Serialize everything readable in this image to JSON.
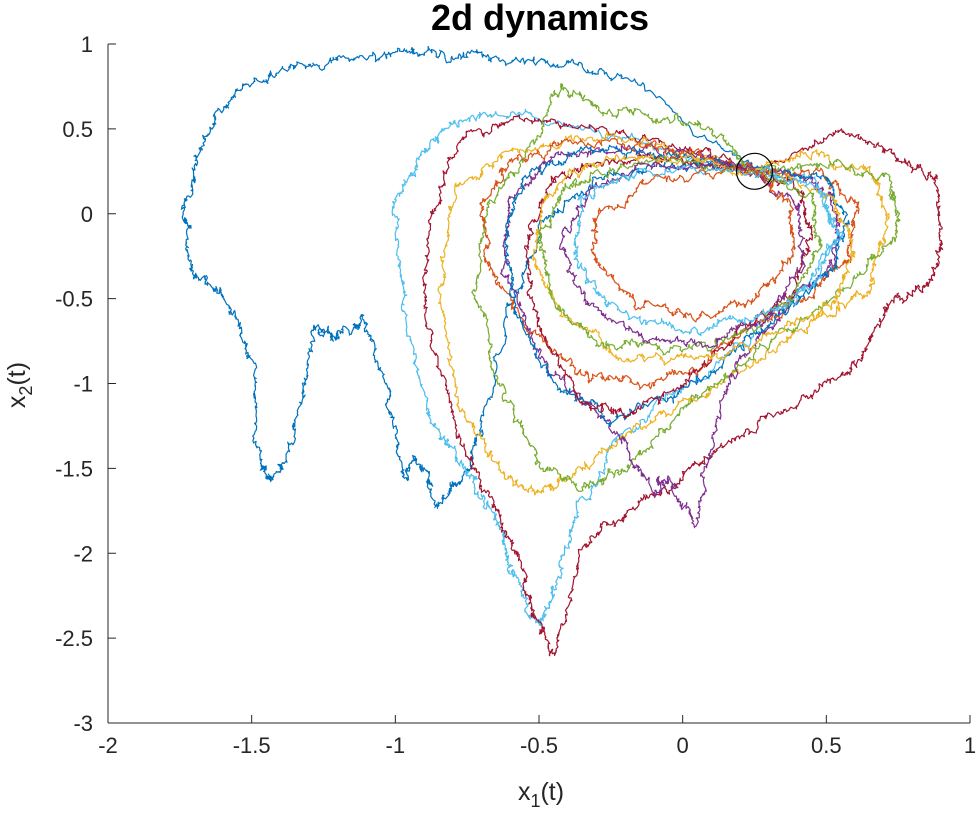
{
  "chart_data": {
    "type": "line",
    "title": "2d dynamics",
    "xlabel": {
      "base": "x",
      "sub": "1",
      "suffix": "(t)"
    },
    "ylabel": {
      "base": "x",
      "sub": "2",
      "suffix": "(t)"
    },
    "xlim": [
      -2,
      1
    ],
    "ylim": [
      -3,
      1
    ],
    "xticks": [
      -2,
      -1.5,
      -1,
      -0.5,
      0,
      0.5,
      1
    ],
    "xtick_labels": [
      "-2",
      "-1.5",
      "-1",
      "-0.5",
      "0",
      "0.5",
      "1"
    ],
    "yticks": [
      -3,
      -2.5,
      -2,
      -1.5,
      -1,
      -0.5,
      0,
      0.5,
      1
    ],
    "ytick_labels": [
      "-3",
      "-2.5",
      "-2",
      "-1.5",
      "-1",
      "-0.5",
      "0",
      "0.5",
      "1"
    ],
    "grid": false,
    "legend": "none",
    "colors": [
      "#0072BD",
      "#D95319",
      "#EDB120",
      "#7E2F8E",
      "#77AC30",
      "#4DBEEE",
      "#A2142F"
    ],
    "marker": {
      "shape": "circle",
      "x": 0.25,
      "y": 0.25,
      "color": "#000000"
    },
    "series": [
      {
        "color": "#0072BD",
        "keypoints": [
          [
            0.25,
            0.25
          ],
          [
            -0.2,
            0.8
          ],
          [
            -0.45,
            0.88
          ],
          [
            -0.7,
            0.94
          ],
          [
            -0.9,
            0.95
          ],
          [
            -1.1,
            0.93
          ],
          [
            -1.35,
            0.88
          ],
          [
            -1.55,
            0.72
          ],
          [
            -1.67,
            0.45
          ],
          [
            -1.73,
            0.05
          ],
          [
            -1.72,
            -0.35
          ],
          [
            -1.6,
            -0.45
          ],
          [
            -1.5,
            -0.85
          ],
          [
            -1.47,
            -1.5
          ],
          [
            -1.42,
            -1.58
          ],
          [
            -1.33,
            -1.2
          ],
          [
            -1.28,
            -0.65
          ],
          [
            -1.2,
            -0.75
          ],
          [
            -1.12,
            -0.6
          ],
          [
            -1.03,
            -1.05
          ],
          [
            -0.98,
            -1.55
          ],
          [
            -0.92,
            -1.45
          ],
          [
            -0.85,
            -1.7
          ],
          [
            -0.75,
            -1.55
          ],
          [
            -0.7,
            -1.25
          ],
          [
            -0.6,
            -0.55
          ],
          [
            -0.5,
            -0.1
          ],
          [
            -0.3,
            0.2
          ],
          [
            -0.05,
            0.3
          ],
          [
            0.25,
            0.25
          ]
        ]
      },
      {
        "color": "#4DBEEE",
        "keypoints": [
          [
            0.25,
            0.25
          ],
          [
            -0.2,
            0.45
          ],
          [
            -0.55,
            0.6
          ],
          [
            -0.78,
            0.55
          ],
          [
            -0.92,
            0.35
          ],
          [
            -1.0,
            0.0
          ],
          [
            -0.97,
            -0.6
          ],
          [
            -0.88,
            -1.2
          ],
          [
            -0.78,
            -1.45
          ],
          [
            -0.7,
            -1.65
          ],
          [
            -0.62,
            -1.9
          ],
          [
            -0.58,
            -2.15
          ],
          [
            -0.5,
            -2.45
          ],
          [
            -0.45,
            -2.2
          ],
          [
            -0.35,
            -1.7
          ],
          [
            -0.2,
            -1.3
          ],
          [
            0.1,
            -0.9
          ],
          [
            0.4,
            -0.5
          ],
          [
            0.55,
            -0.1
          ],
          [
            0.45,
            0.2
          ],
          [
            0.25,
            0.25
          ]
        ]
      },
      {
        "color": "#A2142F",
        "keypoints": [
          [
            0.25,
            0.25
          ],
          [
            0.55,
            0.5
          ],
          [
            0.75,
            0.35
          ],
          [
            0.88,
            0.2
          ],
          [
            0.9,
            -0.2
          ],
          [
            0.85,
            -0.45
          ],
          [
            0.7,
            -0.55
          ],
          [
            0.62,
            -0.85
          ],
          [
            0.45,
            -1.1
          ],
          [
            0.2,
            -1.3
          ],
          [
            0.0,
            -1.55
          ],
          [
            -0.2,
            -1.75
          ],
          [
            -0.35,
            -2.0
          ],
          [
            -0.45,
            -2.6
          ],
          [
            -0.52,
            -2.35
          ],
          [
            -0.58,
            -2.0
          ],
          [
            -0.68,
            -1.65
          ],
          [
            -0.8,
            -1.2
          ],
          [
            -0.9,
            -0.6
          ],
          [
            -0.88,
            0.0
          ],
          [
            -0.78,
            0.4
          ],
          [
            -0.6,
            0.55
          ],
          [
            -0.3,
            0.5
          ],
          [
            0.0,
            0.42
          ],
          [
            0.25,
            0.25
          ]
        ]
      },
      {
        "color": "#EDB120",
        "keypoints": [
          [
            0.25,
            0.25
          ],
          [
            0.45,
            0.35
          ],
          [
            0.65,
            0.25
          ],
          [
            0.72,
            0.0
          ],
          [
            0.65,
            -0.45
          ],
          [
            0.5,
            -0.6
          ],
          [
            0.3,
            -0.8
          ],
          [
            0.1,
            -1.05
          ],
          [
            -0.15,
            -1.25
          ],
          [
            -0.35,
            -1.5
          ],
          [
            -0.5,
            -1.65
          ],
          [
            -0.65,
            -1.5
          ],
          [
            -0.78,
            -1.1
          ],
          [
            -0.85,
            -0.5
          ],
          [
            -0.8,
            0.1
          ],
          [
            -0.62,
            0.35
          ],
          [
            -0.35,
            0.45
          ],
          [
            -0.05,
            0.4
          ],
          [
            0.25,
            0.25
          ]
        ]
      },
      {
        "color": "#77AC30",
        "keypoints": [
          [
            0.25,
            0.25
          ],
          [
            0.5,
            0.3
          ],
          [
            0.72,
            0.2
          ],
          [
            0.75,
            -0.05
          ],
          [
            0.65,
            -0.3
          ],
          [
            0.45,
            -0.6
          ],
          [
            0.2,
            -0.9
          ],
          [
            0.0,
            -1.15
          ],
          [
            -0.2,
            -1.5
          ],
          [
            -0.35,
            -1.65
          ],
          [
            -0.5,
            -1.45
          ],
          [
            -0.62,
            -1.05
          ],
          [
            -0.72,
            -0.5
          ],
          [
            -0.68,
            0.05
          ],
          [
            -0.55,
            0.35
          ],
          [
            -0.42,
            0.75
          ],
          [
            -0.3,
            0.62
          ],
          [
            -0.1,
            0.58
          ],
          [
            0.1,
            0.5
          ],
          [
            0.25,
            0.25
          ]
        ]
      },
      {
        "color": "#7E2F8E",
        "keypoints": [
          [
            0.25,
            0.25
          ],
          [
            0.45,
            0.2
          ],
          [
            0.55,
            0.0
          ],
          [
            0.5,
            -0.35
          ],
          [
            0.35,
            -0.55
          ],
          [
            0.2,
            -0.85
          ],
          [
            0.1,
            -1.3
          ],
          [
            0.05,
            -1.85
          ],
          [
            -0.05,
            -1.55
          ],
          [
            -0.1,
            -1.65
          ],
          [
            -0.2,
            -1.35
          ],
          [
            -0.35,
            -1.1
          ],
          [
            -0.5,
            -0.8
          ],
          [
            -0.62,
            -0.35
          ],
          [
            -0.6,
            0.1
          ],
          [
            -0.45,
            0.35
          ],
          [
            -0.2,
            0.4
          ],
          [
            0.05,
            0.35
          ],
          [
            0.25,
            0.25
          ]
        ]
      },
      {
        "color": "#D95319",
        "keypoints": [
          [
            0.25,
            0.25
          ],
          [
            0.48,
            0.22
          ],
          [
            0.6,
            0.05
          ],
          [
            0.58,
            -0.25
          ],
          [
            0.45,
            -0.5
          ],
          [
            0.25,
            -0.65
          ],
          [
            0.05,
            -0.9
          ],
          [
            -0.15,
            -1.0
          ],
          [
            -0.35,
            -0.95
          ],
          [
            -0.55,
            -0.65
          ],
          [
            -0.68,
            -0.3
          ],
          [
            -0.7,
            0.05
          ],
          [
            -0.6,
            0.3
          ],
          [
            -0.4,
            0.42
          ],
          [
            -0.1,
            0.4
          ],
          [
            0.1,
            0.33
          ],
          [
            0.25,
            0.25
          ]
        ]
      },
      {
        "color": "#0072BD",
        "keypoints": [
          [
            0.25,
            0.25
          ],
          [
            0.5,
            0.2
          ],
          [
            0.58,
            -0.05
          ],
          [
            0.5,
            -0.35
          ],
          [
            0.35,
            -0.6
          ],
          [
            0.15,
            -0.85
          ],
          [
            -0.05,
            -1.1
          ],
          [
            -0.25,
            -1.2
          ],
          [
            -0.45,
            -1.0
          ],
          [
            -0.58,
            -0.6
          ],
          [
            -0.62,
            -0.15
          ],
          [
            -0.55,
            0.2
          ],
          [
            -0.35,
            0.38
          ],
          [
            -0.1,
            0.36
          ],
          [
            0.25,
            0.25
          ]
        ]
      },
      {
        "color": "#A2142F",
        "keypoints": [
          [
            0.25,
            0.25
          ],
          [
            0.4,
            0.15
          ],
          [
            0.45,
            -0.1
          ],
          [
            0.38,
            -0.45
          ],
          [
            0.2,
            -0.7
          ],
          [
            0.0,
            -1.0
          ],
          [
            -0.2,
            -1.2
          ],
          [
            -0.35,
            -1.1
          ],
          [
            -0.5,
            -0.7
          ],
          [
            -0.55,
            -0.2
          ],
          [
            -0.48,
            0.15
          ],
          [
            -0.3,
            0.33
          ],
          [
            -0.05,
            0.32
          ],
          [
            0.25,
            0.25
          ]
        ]
      },
      {
        "color": "#EDB120",
        "keypoints": [
          [
            0.25,
            0.25
          ],
          [
            0.52,
            0.1
          ],
          [
            0.6,
            -0.2
          ],
          [
            0.52,
            -0.55
          ],
          [
            0.3,
            -0.75
          ],
          [
            0.05,
            -0.85
          ],
          [
            -0.2,
            -0.85
          ],
          [
            -0.42,
            -0.6
          ],
          [
            -0.52,
            -0.25
          ],
          [
            -0.48,
            0.12
          ],
          [
            -0.3,
            0.3
          ],
          [
            -0.05,
            0.34
          ],
          [
            0.25,
            0.25
          ]
        ]
      },
      {
        "color": "#77AC30",
        "keypoints": [
          [
            0.25,
            0.25
          ],
          [
            0.45,
            0.1
          ],
          [
            0.48,
            -0.2
          ],
          [
            0.38,
            -0.5
          ],
          [
            0.2,
            -0.7
          ],
          [
            -0.05,
            -0.8
          ],
          [
            -0.3,
            -0.75
          ],
          [
            -0.45,
            -0.5
          ],
          [
            -0.5,
            -0.15
          ],
          [
            -0.4,
            0.15
          ],
          [
            -0.2,
            0.3
          ],
          [
            0.25,
            0.25
          ]
        ]
      },
      {
        "color": "#7E2F8E",
        "keypoints": [
          [
            0.25,
            0.25
          ],
          [
            0.4,
            0.05
          ],
          [
            0.42,
            -0.3
          ],
          [
            0.3,
            -0.6
          ],
          [
            0.1,
            -0.75
          ],
          [
            -0.15,
            -0.72
          ],
          [
            -0.35,
            -0.5
          ],
          [
            -0.42,
            -0.15
          ],
          [
            -0.32,
            0.15
          ],
          [
            -0.1,
            0.28
          ],
          [
            0.25,
            0.25
          ]
        ]
      },
      {
        "color": "#4DBEEE",
        "keypoints": [
          [
            0.25,
            0.25
          ],
          [
            0.48,
            0.15
          ],
          [
            0.55,
            -0.15
          ],
          [
            0.45,
            -0.45
          ],
          [
            0.25,
            -0.62
          ],
          [
            0.0,
            -0.68
          ],
          [
            -0.25,
            -0.55
          ],
          [
            -0.38,
            -0.25
          ],
          [
            -0.35,
            0.08
          ],
          [
            -0.15,
            0.25
          ],
          [
            0.25,
            0.25
          ]
        ]
      },
      {
        "color": "#D95319",
        "keypoints": [
          [
            0.25,
            0.25
          ],
          [
            0.38,
            0.05
          ],
          [
            0.38,
            -0.25
          ],
          [
            0.25,
            -0.5
          ],
          [
            0.05,
            -0.6
          ],
          [
            -0.15,
            -0.55
          ],
          [
            -0.3,
            -0.3
          ],
          [
            -0.3,
            0.0
          ],
          [
            -0.12,
            0.2
          ],
          [
            0.25,
            0.25
          ]
        ]
      }
    ]
  }
}
